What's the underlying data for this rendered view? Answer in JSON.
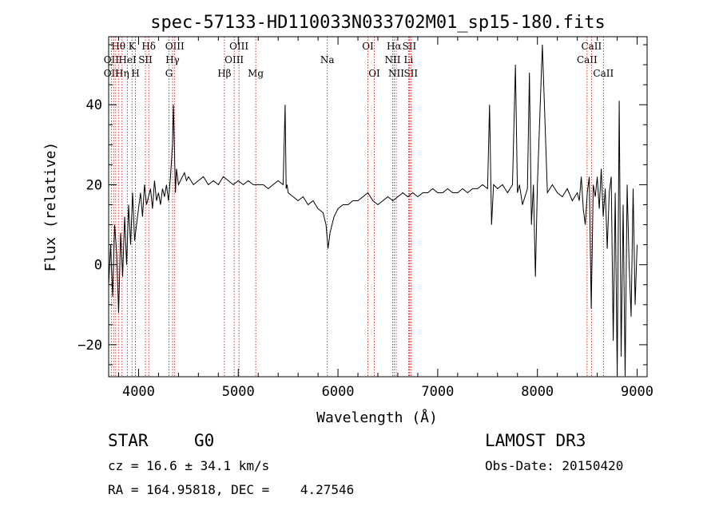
{
  "chart_data": {
    "type": "line",
    "title": "spec-57133-HD110033N033702M01_sp15-180.fits",
    "xlabel": "Wavelength (Å)",
    "ylabel": "Flux (relative)",
    "xlim": [
      3700,
      9100
    ],
    "ylim": [
      -28,
      57
    ],
    "xticks": [
      4000,
      5000,
      6000,
      7000,
      8000,
      9000
    ],
    "yticks": [
      -20,
      0,
      20,
      40
    ],
    "xtick_labels": [
      "4000",
      "5000",
      "6000",
      "7000",
      "8000",
      "9000"
    ],
    "ytick_labels": [
      "−20",
      "0",
      "20",
      "40"
    ],
    "line_color": "#000000",
    "marker_color": "#cc0000",
    "series": [
      {
        "x": [
          3700,
          3720,
          3740,
          3760,
          3780,
          3800,
          3820,
          3840,
          3860,
          3880,
          3900,
          3920,
          3940,
          3960,
          3980,
          4000,
          4020,
          4040,
          4060,
          4080,
          4100,
          4120,
          4140,
          4160,
          4180,
          4200,
          4220,
          4240,
          4260,
          4280,
          4300,
          4320,
          4340,
          4350,
          4360,
          4370,
          4380,
          4400,
          4420,
          4440,
          4460,
          4480,
          4500,
          4550,
          4600,
          4650,
          4700,
          4750,
          4800,
          4850,
          4900,
          4950,
          5000,
          5050,
          5100,
          5150,
          5200,
          5250,
          5300,
          5350,
          5400,
          5450,
          5470,
          5480,
          5490,
          5500,
          5550,
          5600,
          5650,
          5700,
          5750,
          5800,
          5850,
          5880,
          5900,
          5920,
          5940,
          5960,
          6000,
          6050,
          6100,
          6150,
          6200,
          6250,
          6300,
          6350,
          6400,
          6450,
          6500,
          6550,
          6600,
          6650,
          6700,
          6750,
          6800,
          6850,
          6900,
          6950,
          7000,
          7050,
          7100,
          7150,
          7200,
          7250,
          7300,
          7350,
          7400,
          7450,
          7500,
          7520,
          7540,
          7560,
          7600,
          7650,
          7700,
          7750,
          7780,
          7800,
          7820,
          7850,
          7900,
          7920,
          7940,
          7960,
          7980,
          8000,
          8050,
          8100,
          8150,
          8200,
          8250,
          8300,
          8350,
          8400,
          8420,
          8440,
          8460,
          8480,
          8500,
          8520,
          8540,
          8560,
          8580,
          8600,
          8620,
          8640,
          8660,
          8680,
          8700,
          8720,
          8740,
          8760,
          8780,
          8800,
          8820,
          8840,
          8860,
          8880,
          8900,
          8920,
          8940,
          8960,
          8980,
          9000
        ],
        "y": [
          -5,
          5,
          -8,
          10,
          3,
          -12,
          8,
          -3,
          12,
          0,
          15,
          5,
          18,
          6,
          10,
          14,
          18,
          12,
          20,
          15,
          17,
          19,
          14,
          21,
          16,
          18,
          15,
          19,
          17,
          20,
          16,
          22,
          30,
          40,
          28,
          18,
          24,
          20,
          21,
          22,
          23,
          21,
          22,
          20,
          21,
          22,
          20,
          21,
          20,
          22,
          21,
          20,
          21,
          20,
          21,
          20,
          20,
          20,
          19,
          20,
          21,
          20,
          40,
          19,
          20,
          18,
          17,
          16,
          17,
          15,
          16,
          14,
          13,
          10,
          4,
          8,
          10,
          12,
          14,
          15,
          15,
          16,
          16,
          17,
          18,
          16,
          15,
          16,
          17,
          16,
          17,
          18,
          17,
          18,
          17,
          18,
          18,
          19,
          18,
          18,
          19,
          18,
          18,
          19,
          18,
          19,
          19,
          20,
          19,
          40,
          10,
          20,
          19,
          20,
          18,
          20,
          50,
          18,
          20,
          15,
          19,
          48,
          10,
          20,
          -3,
          20,
          55,
          18,
          20,
          18,
          17,
          19,
          16,
          18,
          16,
          22,
          14,
          10,
          18,
          22,
          -11,
          20,
          17,
          22,
          14,
          24,
          12,
          19,
          4,
          18,
          22,
          -19,
          18,
          -28,
          41,
          -23,
          15,
          -28,
          20,
          0,
          -13,
          19,
          -10,
          5
        ]
      }
    ],
    "lines": {
      "top": [
        {
          "label": "Hθ",
          "x": 3798,
          "row": 0
        },
        {
          "label": "OII",
          "x": 3727,
          "row": 1
        },
        {
          "label": "OII",
          "x": 3727,
          "row": 2
        },
        {
          "label": "K",
          "x": 3934,
          "row": 0
        },
        {
          "label": "HeI",
          "x": 3889,
          "row": 1
        },
        {
          "label": "Hη",
          "x": 3835,
          "row": 2
        },
        {
          "label": "Hδ",
          "x": 4102,
          "row": 0
        },
        {
          "label": "SII",
          "x": 4069,
          "row": 1
        },
        {
          "label": "H",
          "x": 3969,
          "row": 2
        },
        {
          "label": "OIII",
          "x": 4363,
          "row": 0
        },
        {
          "label": "Hγ",
          "x": 4341,
          "row": 1
        },
        {
          "label": "G",
          "x": 4305,
          "row": 2
        },
        {
          "label": "OIII",
          "x": 5007,
          "row": 0
        },
        {
          "label": "OIII",
          "x": 4959,
          "row": 1
        },
        {
          "label": "Hβ",
          "x": 4861,
          "row": 2
        },
        {
          "label": "Mg",
          "x": 5175,
          "row": 2
        },
        {
          "label": "Na",
          "x": 5893,
          "row": 1
        },
        {
          "label": "OI",
          "x": 6300,
          "row": 0
        },
        {
          "label": "OI",
          "x": 6364,
          "row": 2
        },
        {
          "label": "Hα",
          "x": 6563,
          "row": 0
        },
        {
          "label": "SII",
          "x": 6716,
          "row": 0
        },
        {
          "label": "NII",
          "x": 6548,
          "row": 1
        },
        {
          "label": "Li",
          "x": 6708,
          "row": 1
        },
        {
          "label": "NII",
          "x": 6584,
          "row": 2
        },
        {
          "label": "SII",
          "x": 6731,
          "row": 2
        },
        {
          "label": "CaII",
          "x": 8542,
          "row": 0
        },
        {
          "label": "CaII",
          "x": 8498,
          "row": 1
        },
        {
          "label": "CaII",
          "x": 8662,
          "row": 2
        }
      ],
      "extra_x": [
        3750,
        3771,
        3889,
        4861,
        5893
      ]
    }
  },
  "info": {
    "class": "STAR",
    "subclass": "G0",
    "survey": "LAMOST DR3",
    "cz": "cz = 16.6 ± 34.1 km/s",
    "obs_date": "Obs-Date: 20150420",
    "coords": "RA = 164.95818, DEC =    4.27546"
  }
}
